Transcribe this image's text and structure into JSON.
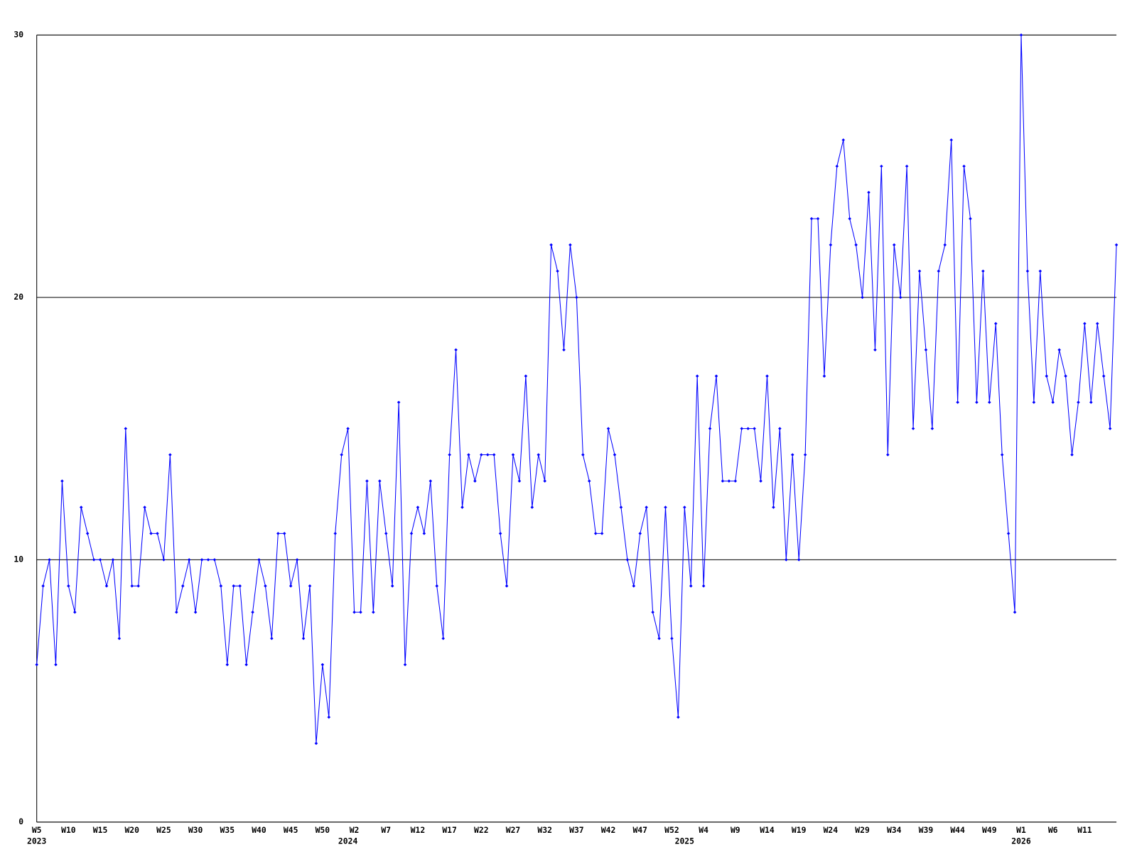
{
  "chart_data": {
    "type": "line",
    "categories": [
      "W5",
      null,
      null,
      null,
      null,
      "W10",
      null,
      null,
      null,
      null,
      "W15",
      null,
      null,
      null,
      null,
      "W20",
      null,
      null,
      null,
      null,
      "W25",
      null,
      null,
      null,
      null,
      "W30",
      null,
      null,
      null,
      null,
      "W35",
      null,
      null,
      null,
      null,
      "W40",
      null,
      null,
      null,
      null,
      "W45",
      null,
      null,
      null,
      null,
      "W50",
      null,
      null,
      null,
      null,
      "W2",
      null,
      null,
      null,
      null,
      "W7",
      null,
      null,
      null,
      null,
      "W12",
      null,
      null,
      null,
      null,
      "W17",
      null,
      null,
      null,
      null,
      "W22",
      null,
      null,
      null,
      null,
      "W27",
      null,
      null,
      null,
      null,
      "W32",
      null,
      null,
      null,
      null,
      "W37",
      null,
      null,
      null,
      null,
      "W42",
      null,
      null,
      null,
      null,
      "W47",
      null,
      null,
      null,
      null,
      "W52",
      null,
      null,
      null,
      null,
      "W4",
      null,
      null,
      null,
      null,
      "W9",
      null,
      null,
      null,
      null,
      "W14",
      null,
      null,
      null,
      null,
      "W19",
      null,
      null,
      null,
      null,
      "W24",
      null,
      null,
      null,
      null,
      "W29",
      null,
      null,
      null,
      null,
      "W34",
      null,
      null,
      null,
      null,
      "W39",
      null,
      null,
      null,
      null,
      "W44",
      null,
      null,
      null,
      null,
      "W49",
      null,
      null,
      null,
      null,
      "W1",
      null,
      null,
      null,
      null,
      "W6",
      null,
      null,
      null,
      null,
      "W11",
      null,
      null,
      null,
      null,
      null
    ],
    "years": [
      "2023",
      null,
      null,
      null,
      null,
      null,
      null,
      null,
      null,
      null,
      null,
      null,
      null,
      null,
      null,
      null,
      null,
      null,
      null,
      null,
      null,
      null,
      null,
      null,
      null,
      null,
      null,
      null,
      null,
      null,
      null,
      null,
      null,
      null,
      null,
      null,
      null,
      null,
      null,
      null,
      null,
      null,
      null,
      null,
      null,
      null,
      null,
      null,
      null,
      "2024",
      null,
      null,
      null,
      null,
      null,
      null,
      null,
      null,
      null,
      null,
      null,
      null,
      null,
      null,
      null,
      null,
      null,
      null,
      null,
      null,
      null,
      null,
      null,
      null,
      null,
      null,
      null,
      null,
      null,
      null,
      null,
      null,
      null,
      null,
      null,
      null,
      null,
      null,
      null,
      null,
      null,
      null,
      null,
      null,
      null,
      null,
      null,
      null,
      null,
      null,
      null,
      null,
      "2025",
      null,
      null,
      null,
      null,
      null,
      null,
      null,
      null,
      null,
      null,
      null,
      null,
      null,
      null,
      null,
      null,
      null,
      null,
      null,
      null,
      null,
      null,
      null,
      null,
      null,
      null,
      null,
      null,
      null,
      null,
      null,
      null,
      null,
      null,
      null,
      null,
      null,
      null,
      null,
      null,
      null,
      null,
      null,
      null,
      null,
      null,
      null,
      null,
      null,
      null,
      null,
      null,
      "2026",
      null,
      null,
      null,
      null,
      null,
      null,
      null,
      null,
      null,
      null,
      null,
      null,
      null,
      null,
      null
    ],
    "values": [
      6,
      9,
      10,
      6,
      13,
      9,
      8,
      12,
      11,
      10,
      10,
      9,
      10,
      7,
      15,
      9,
      9,
      12,
      11,
      11,
      10,
      14,
      8,
      9,
      10,
      8,
      10,
      10,
      10,
      9,
      6,
      9,
      9,
      6,
      8,
      10,
      9,
      7,
      11,
      11,
      9,
      10,
      7,
      9,
      3,
      6,
      4,
      11,
      14,
      15,
      8,
      8,
      13,
      8,
      13,
      11,
      9,
      16,
      6,
      11,
      12,
      11,
      13,
      9,
      7,
      14,
      18,
      12,
      14,
      13,
      14,
      14,
      14,
      11,
      9,
      14,
      13,
      17,
      12,
      14,
      13,
      22,
      21,
      18,
      22,
      20,
      14,
      13,
      11,
      11,
      15,
      14,
      12,
      10,
      9,
      11,
      12,
      8,
      7,
      12,
      7,
      4,
      12,
      9,
      17,
      9,
      15,
      17,
      13,
      13,
      13,
      15,
      15,
      15,
      13,
      17,
      12,
      15,
      10,
      14,
      10,
      14,
      23,
      23,
      17,
      22,
      25,
      26,
      23,
      22,
      20,
      24,
      18,
      25,
      14,
      22,
      20,
      25,
      15,
      21,
      18,
      15,
      21,
      22,
      26,
      16,
      25,
      23,
      16,
      21,
      16,
      19,
      14,
      11,
      8,
      30,
      21,
      16,
      21,
      17,
      16,
      18,
      17,
      14,
      16,
      19,
      16,
      19,
      17,
      15,
      22
    ],
    "color": "#0000ff",
    "ylim": [
      0,
      30
    ],
    "yticks": [
      0,
      10,
      20,
      30
    ],
    "grid": true
  }
}
